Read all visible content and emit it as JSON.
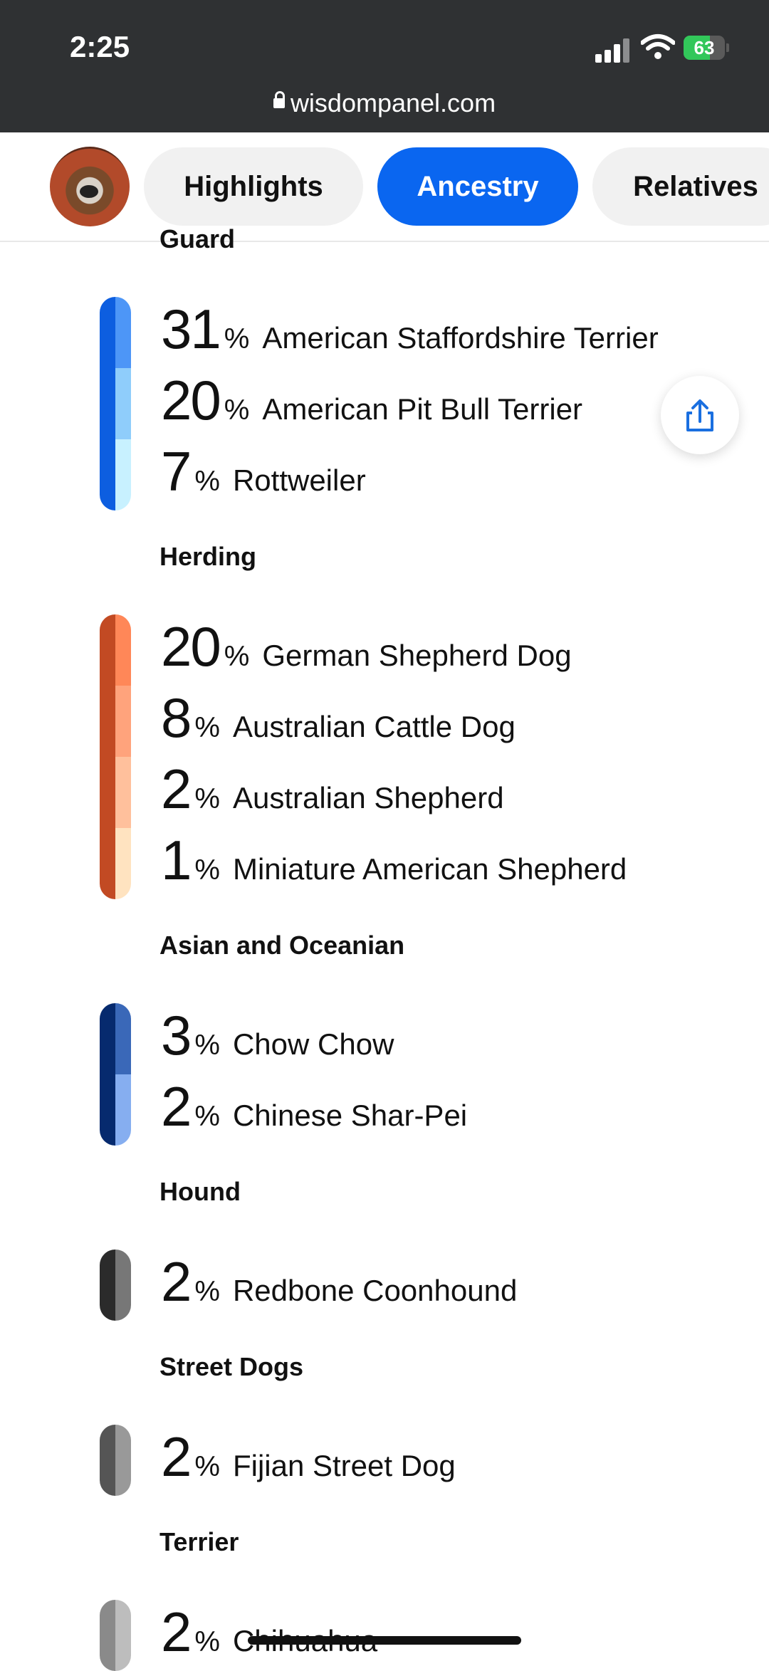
{
  "status": {
    "time": "2:25",
    "battery": "63",
    "battery_level": 0.63
  },
  "browser": {
    "url": "wisdompanel.com"
  },
  "tabs": [
    {
      "label": "Highlights",
      "active": false
    },
    {
      "label": "Ancestry",
      "active": true
    },
    {
      "label": "Relatives",
      "active": false
    }
  ],
  "groups": [
    {
      "title": "Guard",
      "stripe_color": "#0d5ee0",
      "breeds": [
        {
          "percent": "31",
          "name": "American Staffordshire Terrier",
          "color": "#4d96f7"
        },
        {
          "percent": "20",
          "name": "American Pit Bull Terrier",
          "color": "#8fcdfb"
        },
        {
          "percent": "7",
          "name": "Rottweiler",
          "color": "#c8f1ff"
        }
      ]
    },
    {
      "title": "Herding",
      "stripe_color": "#c24a23",
      "breeds": [
        {
          "percent": "20",
          "name": "German Shepherd Dog",
          "color": "#ff8758"
        },
        {
          "percent": "8",
          "name": "Australian Cattle Dog",
          "color": "#ffa37c"
        },
        {
          "percent": "2",
          "name": "Australian Shepherd",
          "color": "#ffc09c"
        },
        {
          "percent": "1",
          "name": "Miniature American Shepherd",
          "color": "#ffe3c0"
        }
      ]
    },
    {
      "title": "Asian and Oceanian",
      "stripe_color": "#062a6e",
      "breeds": [
        {
          "percent": "3",
          "name": "Chow Chow",
          "color": "#3a68b8"
        },
        {
          "percent": "2",
          "name": "Chinese Shar-Pei",
          "color": "#86aef0"
        }
      ]
    },
    {
      "title": "Hound",
      "stripe_color": "#2b2b2b",
      "breeds": [
        {
          "percent": "2",
          "name": "Redbone Coonhound",
          "color": "#777777"
        }
      ]
    },
    {
      "title": "Street Dogs",
      "stripe_color": "#555555",
      "breeds": [
        {
          "percent": "2",
          "name": "Fijian Street Dog",
          "color": "#999999"
        }
      ]
    },
    {
      "title": "Terrier",
      "stripe_color": "#8a8a8a",
      "breeds": [
        {
          "percent": "2",
          "name": "Chihuahua",
          "color": "#bdbdbd"
        }
      ]
    }
  ],
  "labels": {
    "percent_sign": "%"
  },
  "icons": {
    "share": "share-icon",
    "lock": "lock-icon"
  }
}
